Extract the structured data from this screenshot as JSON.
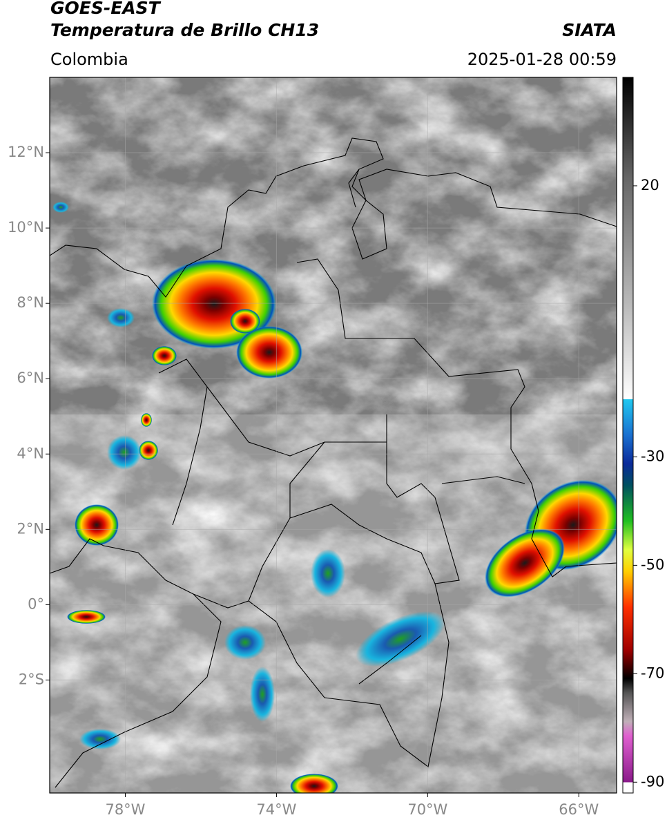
{
  "header": {
    "satellite": "GOES-EAST",
    "product": "Temperatura de Brillo CH13",
    "source": "SIATA",
    "region": "Colombia",
    "datetime": "2025-01-28 00:59"
  },
  "map": {
    "xlim": [
      -80,
      -65
    ],
    "ylim": [
      -5,
      14
    ],
    "xticks": [
      {
        "value": -78,
        "label": "78°W"
      },
      {
        "value": -74,
        "label": "74°W"
      },
      {
        "value": -70,
        "label": "70°W"
      },
      {
        "value": -66,
        "label": "66°W"
      }
    ],
    "yticks": [
      {
        "value": 12,
        "label": "12°N"
      },
      {
        "value": 10,
        "label": "10°N"
      },
      {
        "value": 8,
        "label": "8°N"
      },
      {
        "value": 6,
        "label": "6°N"
      },
      {
        "value": 4,
        "label": "4°N"
      },
      {
        "value": 2,
        "label": "2°N"
      },
      {
        "value": 0,
        "label": "0°"
      },
      {
        "value": -2,
        "label": "2°S"
      }
    ],
    "grid": true
  },
  "colorbar": {
    "lim": [
      -92,
      40
    ],
    "ticks": [
      20,
      -30,
      -50,
      -70,
      -90
    ]
  }
}
